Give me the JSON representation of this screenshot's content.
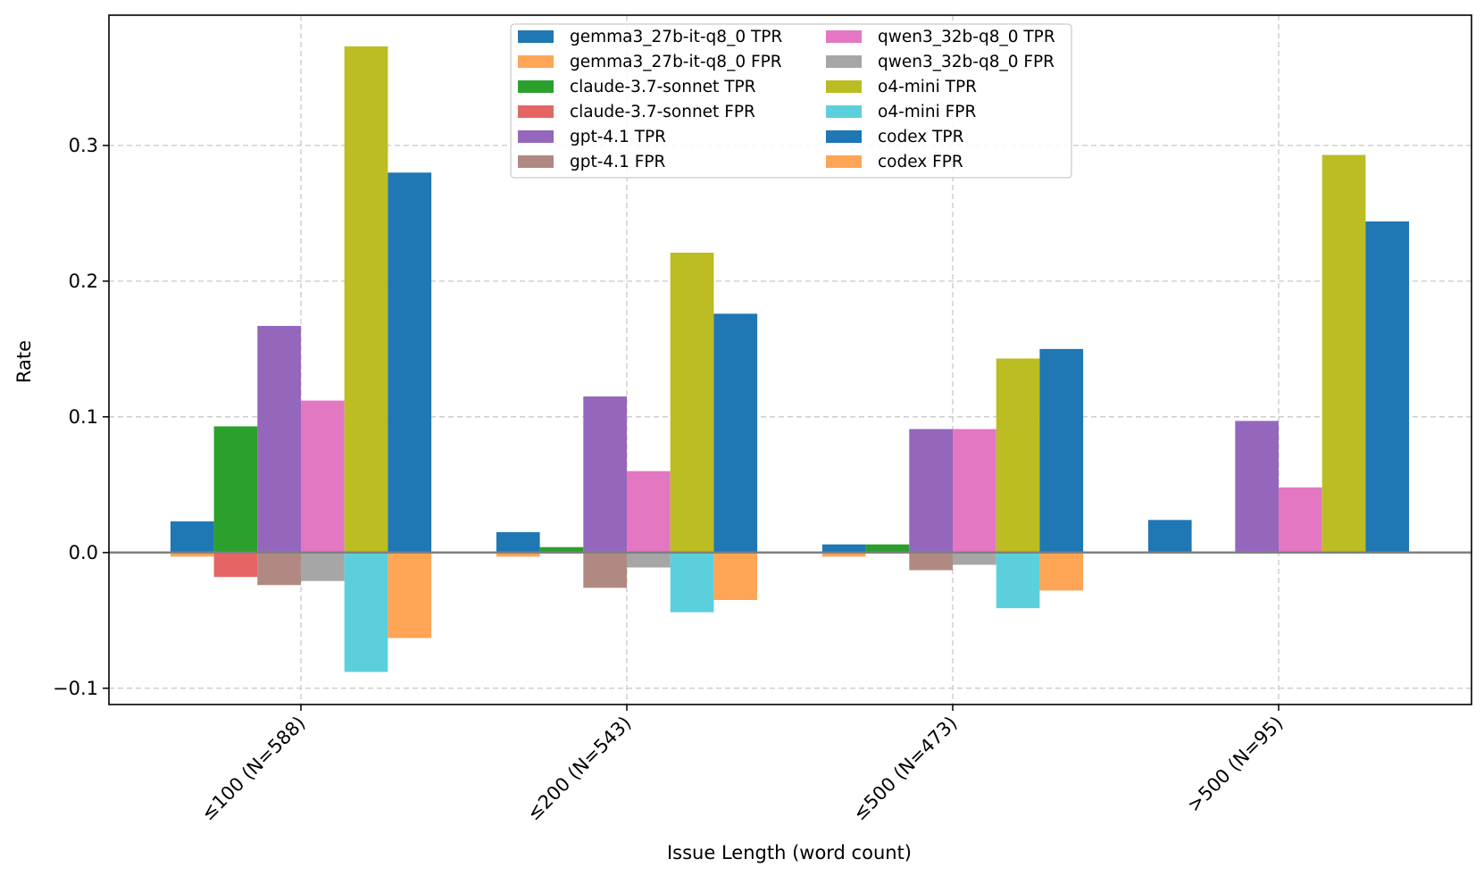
{
  "chart_data": {
    "type": "bar",
    "title": "",
    "xlabel": "Issue Length (word count)",
    "ylabel": "Rate",
    "ylim": [
      -0.112,
      0.396
    ],
    "yticks": [
      -0.1,
      0.0,
      0.1,
      0.2,
      0.3
    ],
    "ytick_labels": [
      "−0.1",
      "0.0",
      "0.1",
      "0.2",
      "0.3"
    ],
    "grid": true,
    "legend_position": "top-center",
    "categories": [
      "≤100 (N=588)",
      "≤200 (N=543)",
      "≤500 (N=473)",
      ">500 (N=95)"
    ],
    "series": [
      {
        "name": "gemma3_27b-it-q8_0 TPR",
        "color": "#1f77b4",
        "values": [
          0.023,
          0.015,
          0.006,
          0.024
        ]
      },
      {
        "name": "gemma3_27b-it-q8_0 FPR",
        "color": "#ffa556",
        "values": [
          -0.003,
          -0.003,
          -0.003,
          0.0
        ]
      },
      {
        "name": "claude-3.7-sonnet TPR",
        "color": "#2ca02c",
        "values": [
          0.093,
          0.004,
          0.006,
          0.0
        ]
      },
      {
        "name": "claude-3.7-sonnet FPR",
        "color": "#e56565",
        "values": [
          -0.018,
          0.0,
          0.0,
          0.0
        ]
      },
      {
        "name": "gpt-4.1 TPR",
        "color": "#9467bd",
        "values": [
          0.167,
          0.115,
          0.091,
          0.097
        ]
      },
      {
        "name": "gpt-4.1 FPR",
        "color": "#b08a82",
        "values": [
          -0.024,
          -0.026,
          -0.013,
          0.0
        ]
      },
      {
        "name": "qwen3_32b-q8_0 TPR",
        "color": "#e377c2",
        "values": [
          0.112,
          0.06,
          0.091,
          0.048
        ]
      },
      {
        "name": "qwen3_32b-q8_0 FPR",
        "color": "#a6a6a6",
        "values": [
          -0.021,
          -0.011,
          -0.009,
          0.0
        ]
      },
      {
        "name": "o4-mini TPR",
        "color": "#bcbd22",
        "values": [
          0.373,
          0.221,
          0.143,
          0.293
        ]
      },
      {
        "name": "o4-mini FPR",
        "color": "#5bd0dc",
        "values": [
          -0.088,
          -0.044,
          -0.041,
          0.0
        ]
      },
      {
        "name": "codex TPR",
        "color": "#1f77b4",
        "values": [
          0.28,
          0.176,
          0.15,
          0.244
        ]
      },
      {
        "name": "codex FPR",
        "color": "#ffa556",
        "values": [
          -0.063,
          -0.035,
          -0.028,
          0.0
        ]
      }
    ],
    "bar_order": [
      [
        "gemma3_27b-it-q8_0 TPR",
        "gemma3_27b-it-q8_0 FPR"
      ],
      [
        "claude-3.7-sonnet TPR",
        "claude-3.7-sonnet FPR"
      ],
      [
        "gpt-4.1 TPR",
        "gpt-4.1 FPR"
      ],
      [
        "qwen3_32b-q8_0 TPR",
        "qwen3_32b-q8_0 FPR"
      ],
      [
        "o4-mini TPR",
        "o4-mini FPR"
      ],
      [
        "codex TPR",
        "codex FPR"
      ]
    ]
  }
}
